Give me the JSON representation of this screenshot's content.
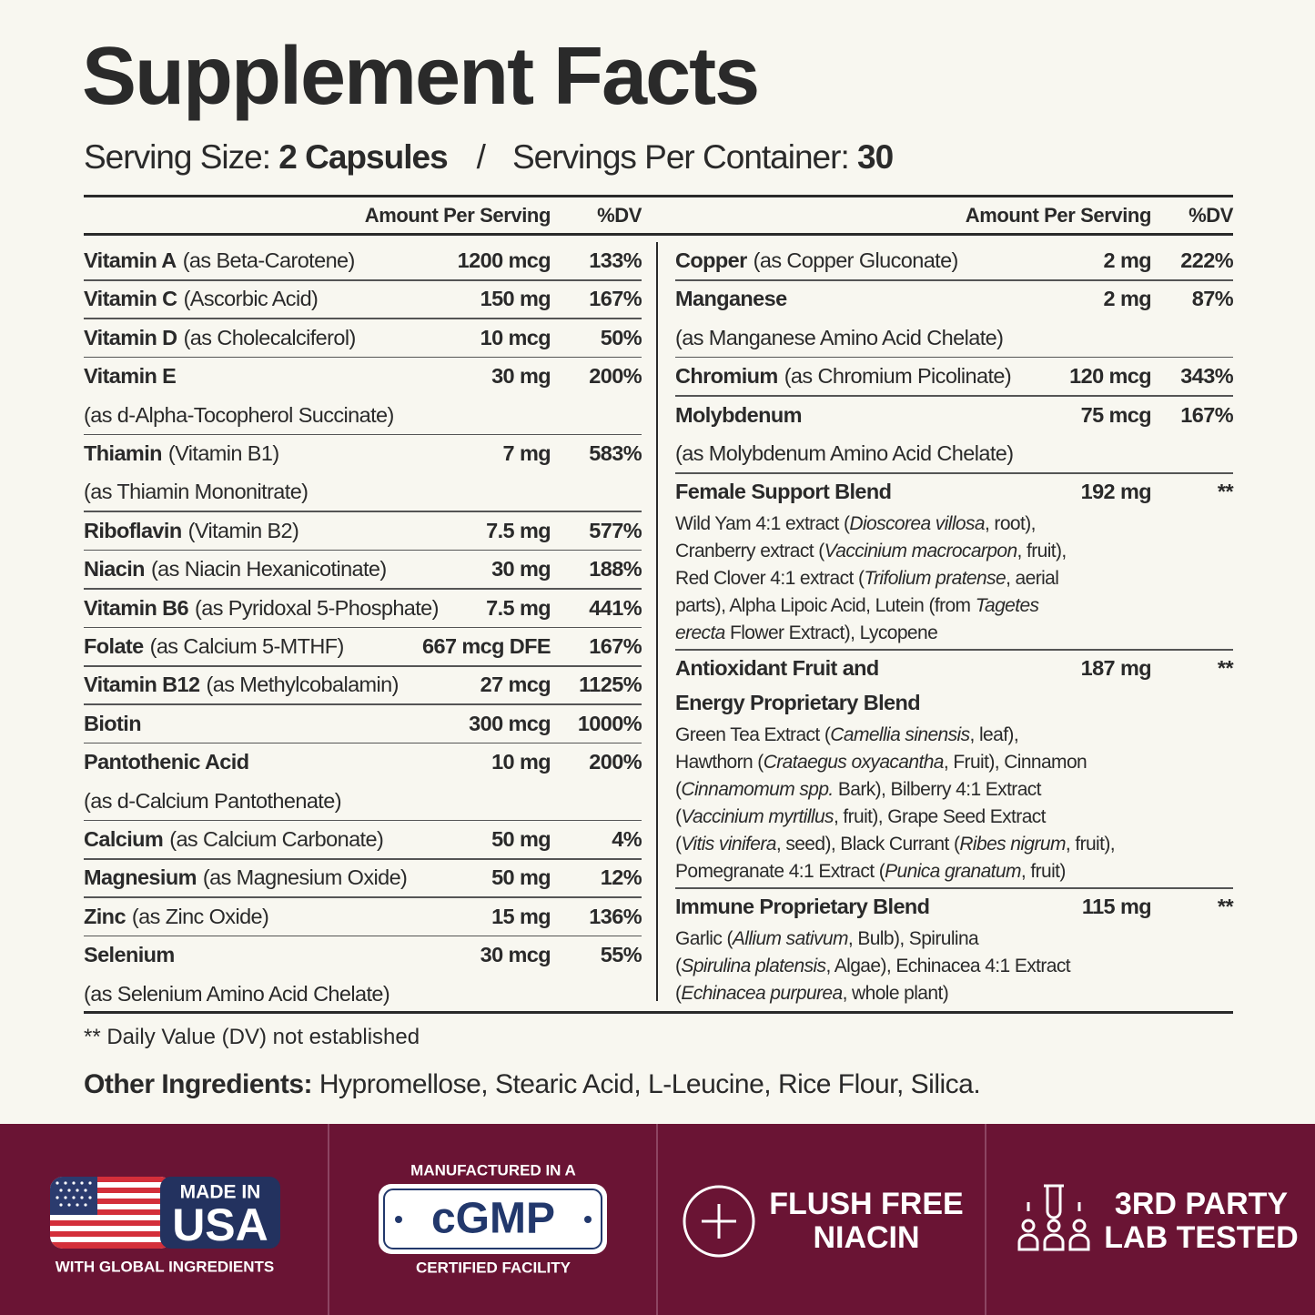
{
  "header": {
    "title": "Supplement Facts",
    "serving_size_label": "Serving Size:",
    "serving_size": "2 Capsules",
    "separator": "/",
    "servings_per_container_label": "Servings Per Container:",
    "servings_per_container": "30"
  },
  "table": {
    "left": {
      "columns": [
        "Amount Per Serving",
        "%DV"
      ],
      "rows": [
        {
          "name": "Vitamin A",
          "detail": "(as Beta-Carotene)",
          "amount": "1200 mcg",
          "dv": "133%"
        },
        {
          "name": "Vitamin C",
          "detail": "(Ascorbic Acid)",
          "amount": "150 mg",
          "dv": "167%"
        },
        {
          "name": "Vitamin D",
          "detail": "(as Cholecalciferol)",
          "amount": "10 mcg",
          "dv": "50%"
        },
        {
          "name": "Vitamin E",
          "amount": "30 mg",
          "dv": "200%",
          "note": "(as d-Alpha-Tocopherol Succinate)"
        },
        {
          "name": "Thiamin",
          "detail": "(Vitamin B1)",
          "amount": "7 mg",
          "dv": "583%",
          "note": "(as Thiamin Mononitrate)"
        },
        {
          "name": "Riboflavin",
          "detail": "(Vitamin B2)",
          "amount": "7.5 mg",
          "dv": "577%"
        },
        {
          "name": "Niacin",
          "detail": "(as Niacin Hexanicotinate)",
          "amount": "30 mg",
          "dv": "188%"
        },
        {
          "name": "Vitamin B6",
          "detail": "(as Pyridoxal 5-Phosphate)",
          "amount": "7.5 mg",
          "dv": "441%"
        },
        {
          "name": "Folate",
          "detail": "(as Calcium 5-MTHF)",
          "amount": "667 mcg DFE",
          "dv": "167%"
        },
        {
          "name": "Vitamin B12",
          "detail": "(as Methylcobalamin)",
          "amount": "27 mcg",
          "dv": "1125%"
        },
        {
          "name": "Biotin",
          "amount": "300 mcg",
          "dv": "1000%"
        },
        {
          "name": "Pantothenic Acid",
          "amount": "10 mg",
          "dv": "200%",
          "note": "(as d-Calcium Pantothenate)"
        },
        {
          "name": "Calcium",
          "detail": "(as Calcium Carbonate)",
          "amount": "50 mg",
          "dv": "4%"
        },
        {
          "name": "Magnesium",
          "detail": "(as Magnesium Oxide)",
          "amount": "50 mg",
          "dv": "12%"
        },
        {
          "name": "Zinc",
          "detail": "(as Zinc Oxide)",
          "amount": "15 mg",
          "dv": "136%"
        },
        {
          "name": "Selenium",
          "amount": "30 mcg",
          "dv": "55%",
          "note": "(as Selenium Amino Acid Chelate)"
        }
      ]
    },
    "right": {
      "columns": [
        "Amount Per Serving",
        "%DV"
      ],
      "rows": [
        {
          "name": "Copper",
          "detail": "(as Copper Gluconate)",
          "amount": "2 mg",
          "dv": "222%"
        },
        {
          "name": "Manganese",
          "amount": "2 mg",
          "dv": "87%",
          "note": "(as Manganese Amino Acid Chelate)"
        },
        {
          "name": "Chromium",
          "detail": "(as Chromium Picolinate)",
          "amount": "120 mcg",
          "dv": "343%"
        },
        {
          "name": "Molybdenum",
          "amount": "75 mcg",
          "dv": "167%",
          "note": "(as Molybdenum Amino Acid Chelate)"
        },
        {
          "name": "Female Support Blend",
          "amount": "192 mg",
          "dv": "**",
          "lines": [
            [
              "Wild Yam 4:1 extract (",
              {
                "text": "Dioscorea villosa",
                "italic": true
              },
              ", root),"
            ],
            [
              "Cranberry extract (",
              {
                "text": "Vaccinium macrocarpon",
                "italic": true
              },
              ", fruit),"
            ],
            [
              "Red Clover 4:1 extract (",
              {
                "text": "Trifolium pratense",
                "italic": true
              },
              ", aerial"
            ],
            [
              "parts), Alpha Lipoic Acid, Lutein (from ",
              {
                "text": "Tagetes",
                "italic": true
              }
            ],
            [
              {
                "text": "erecta",
                "italic": true
              },
              " Flower Extract), Lycopene"
            ]
          ]
        },
        {
          "name": [
            "Antioxidant Fruit and",
            "Energy Proprietary Blend"
          ],
          "amount": "187 mg",
          "dv": "**",
          "lines": [
            [
              "Green Tea Extract (",
              {
                "text": "Camellia sinensis",
                "italic": true
              },
              ", leaf),"
            ],
            [
              "Hawthorn (",
              {
                "text": "Crataegus oxyacantha",
                "italic": true
              },
              ", Fruit), Cinnamon"
            ],
            [
              "(",
              {
                "text": "Cinnamomum spp.",
                "italic": true
              },
              " Bark), Bilberry 4:1 Extract"
            ],
            [
              "(",
              {
                "text": "Vaccinium myrtillus",
                "italic": true
              },
              ", fruit), Grape Seed Extract"
            ],
            [
              "(",
              {
                "text": "Vitis vinifera",
                "italic": true
              },
              ", seed), Black Currant (",
              {
                "text": "Ribes nigrum",
                "italic": true
              },
              ", fruit),"
            ],
            [
              "Pomegranate 4:1 Extract (",
              {
                "text": "Punica granatum",
                "italic": true
              },
              ", fruit)"
            ]
          ]
        },
        {
          "name": "Immune Proprietary Blend",
          "amount": "115 mg",
          "dv": "**",
          "lines": [
            [
              "Garlic (",
              {
                "text": "Allium sativum",
                "italic": true
              },
              ", Bulb), Spirulina"
            ],
            [
              "(",
              {
                "text": "Spirulina platensis",
                "italic": true
              },
              ", Algae), Echinacea 4:1 Extract"
            ],
            [
              "(",
              {
                "text": "Echinacea purpurea",
                "italic": true
              },
              ", whole plant)"
            ]
          ]
        }
      ]
    }
  },
  "footnote": "** Daily Value (DV) not established",
  "other_ingredients": {
    "label": "Other Ingredients:",
    "text": "Hypromellose, Stearic Acid, L-Leucine, Rice Flour, Silica."
  },
  "badges": [
    {
      "top": "MADE IN",
      "main": "USA",
      "caption": "WITH GLOBAL INGREDIENTS"
    },
    {
      "top": "MANUFACTURED IN A",
      "main": "cGMP",
      "caption": "CERTIFIED FACILITY"
    },
    {
      "lines": [
        "FLUSH FREE",
        "NIACIN"
      ]
    },
    {
      "lines": [
        "3RD PARTY",
        "LAB TESTED"
      ]
    }
  ]
}
